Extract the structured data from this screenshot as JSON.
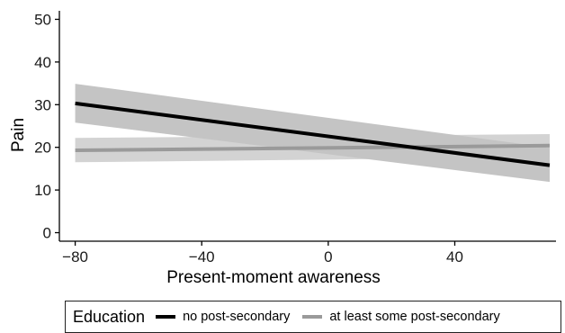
{
  "chart_data": {
    "type": "line",
    "xlabel": "Present-moment awareness",
    "ylabel": "Pain",
    "xlim": [
      -85,
      72
    ],
    "ylim": [
      -2,
      52
    ],
    "x_ticks": [
      -80,
      -40,
      0,
      40
    ],
    "y_ticks": [
      0,
      10,
      20,
      30,
      40,
      50
    ],
    "x_tick_labels": [
      "-80",
      "-40",
      "0",
      "40"
    ],
    "y_tick_labels": [
      "0",
      "10",
      "20",
      "30",
      "40",
      "50"
    ],
    "grid": false,
    "legend_position": "bottom",
    "legend_title": "Education",
    "series": [
      {
        "name": "no post-secondary",
        "color": "#000000",
        "band_color": "#b0b0b0",
        "x": [
          -80,
          70
        ],
        "y": [
          30.3,
          15.8
        ],
        "ci_lower": [
          25.8,
          11.9
        ],
        "ci_upper": [
          34.9,
          19.9
        ]
      },
      {
        "name": "at least some post-secondary",
        "color": "#9a9a9a",
        "band_color": "#c4c4c4",
        "x": [
          -80,
          70
        ],
        "y": [
          19.3,
          20.4
        ],
        "ci_lower": [
          16.5,
          17.7
        ],
        "ci_upper": [
          22.2,
          23.1
        ]
      }
    ]
  }
}
